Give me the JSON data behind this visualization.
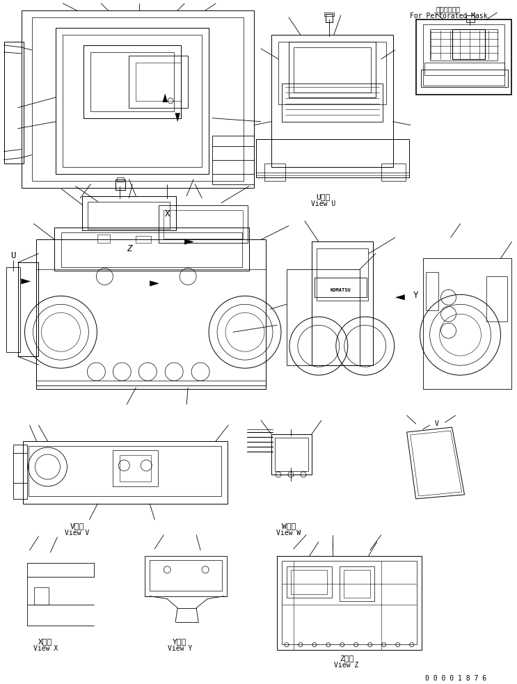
{
  "bg_color": "#ffffff",
  "line_color": "#000000",
  "fig_width": 7.43,
  "fig_height": 9.83,
  "dpi": 100,
  "labels": {
    "top_right_jp": "丸穴マスク用",
    "top_right_en": "For Perforated Mask",
    "view_u_jp": "U　視",
    "view_u_en": "View U",
    "view_v_jp": "V　視",
    "view_v_en": "View V",
    "view_w_jp": "W　視",
    "view_w_en": "View W",
    "view_x_jp": "X　視",
    "view_x_en": "View X",
    "view_y_jp": "Y　視",
    "view_y_en": "View Y",
    "view_z_jp": "Z　視",
    "view_z_en": "View Z",
    "part_number": "0 0 0 0 1 8 7 6",
    "komatsu": "KOMATSU",
    "u_label": "U",
    "x_label": "X",
    "y_label": "Y",
    "z_label": "Z"
  }
}
